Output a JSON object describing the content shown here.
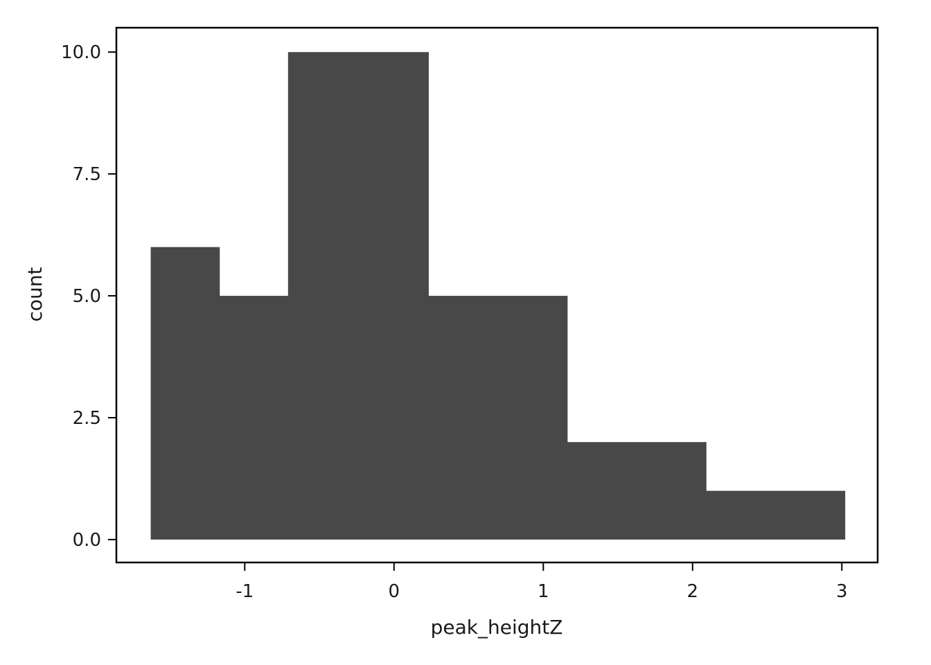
{
  "chart_data": {
    "type": "bar",
    "subtype": "histogram",
    "title": "",
    "xlabel": "peak_heightZ",
    "ylabel": "count",
    "bins": [
      {
        "x0": -1.63,
        "x1": -1.17,
        "count": 6
      },
      {
        "x0": -1.17,
        "x1": -0.71,
        "count": 5
      },
      {
        "x0": -0.71,
        "x1": 0.23,
        "count": 10
      },
      {
        "x0": 0.23,
        "x1": 1.16,
        "count": 5
      },
      {
        "x0": 1.16,
        "x1": 2.09,
        "count": 2
      },
      {
        "x0": 2.09,
        "x1": 3.02,
        "count": 1
      }
    ],
    "xlim": [
      -1.86,
      3.24
    ],
    "ylim": [
      -0.47,
      10.5
    ],
    "xticks": [
      -1,
      0,
      1,
      2,
      3
    ],
    "xtick_labels": [
      "-1",
      "0",
      "1",
      "2",
      "3"
    ],
    "yticks": [
      0,
      2.5,
      5,
      7.5,
      10
    ],
    "ytick_labels": [
      "0.0",
      "2.5",
      "5.0",
      "7.5",
      "10.0"
    ],
    "bar_color": "#484848",
    "grid": false,
    "legend": "none"
  }
}
